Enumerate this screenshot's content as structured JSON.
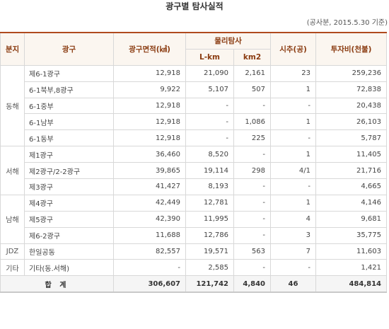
{
  "title": "광구별 탐사실적",
  "note": "(공사분, 2015.5.30 기준)",
  "headers": {
    "bunji": "분지",
    "gwanggu": "광구",
    "area": "광구면적(㎢)",
    "physical": "물리탐사",
    "lkm": "L-km",
    "km2": "km2",
    "drill": "시추(공)",
    "invest": "투자비(천불)"
  },
  "groups": [
    {
      "bunji": "동해",
      "rows": [
        {
          "name": "제6-1광구",
          "area": "12,918",
          "lkm": "21,090",
          "km2": "2,161",
          "drill": "23",
          "invest": "259,236"
        },
        {
          "name": "6-1북부,8광구",
          "area": "9,922",
          "lkm": "5,107",
          "km2": "507",
          "drill": "1",
          "invest": "72,838"
        },
        {
          "name": "6-1중부",
          "area": "12,918",
          "lkm": "-",
          "km2": "-",
          "drill": "-",
          "invest": "20,438"
        },
        {
          "name": "6-1남부",
          "area": "12,918",
          "lkm": "-",
          "km2": "1,086",
          "drill": "1",
          "invest": "26,103"
        },
        {
          "name": "6-1동부",
          "area": "12,918",
          "lkm": "-",
          "km2": "225",
          "drill": "-",
          "invest": "5,787"
        }
      ]
    },
    {
      "bunji": "서해",
      "rows": [
        {
          "name": "제1광구",
          "area": "36,460",
          "lkm": "8,520",
          "km2": "-",
          "drill": "1",
          "invest": "11,405"
        },
        {
          "name": "제2광구/2-2광구",
          "area": "39,865",
          "lkm": "19,114",
          "km2": "298",
          "drill": "4/1",
          "invest": "21,716"
        },
        {
          "name": "제3광구",
          "area": "41,427",
          "lkm": "8,193",
          "km2": "-",
          "drill": "-",
          "invest": "4,665"
        }
      ]
    },
    {
      "bunji": "남해",
      "rows": [
        {
          "name": "제4광구",
          "area": "42,449",
          "lkm": "12,781",
          "km2": "-",
          "drill": "1",
          "invest": "4,146"
        },
        {
          "name": "제5광구",
          "area": "42,390",
          "lkm": "11,995",
          "km2": "-",
          "drill": "4",
          "invest": "9,681"
        },
        {
          "name": "제6-2광구",
          "area": "11,688",
          "lkm": "12,786",
          "km2": "-",
          "drill": "3",
          "invest": "35,775"
        }
      ]
    },
    {
      "bunji": "JDZ",
      "rows": [
        {
          "name": "한일공동",
          "area": "82,557",
          "lkm": "19,571",
          "km2": "563",
          "drill": "7",
          "invest": "11,603"
        }
      ]
    },
    {
      "bunji": "기타",
      "rows": [
        {
          "name": "기타(동.서해)",
          "area": "-",
          "lkm": "2,585",
          "km2": "-",
          "drill": "-",
          "invest": "1,421"
        }
      ]
    }
  ],
  "total": {
    "label": "합 계",
    "area": "306,607",
    "lkm": "121,742",
    "km2": "4,840",
    "drill": "46",
    "invest": "484,814"
  }
}
